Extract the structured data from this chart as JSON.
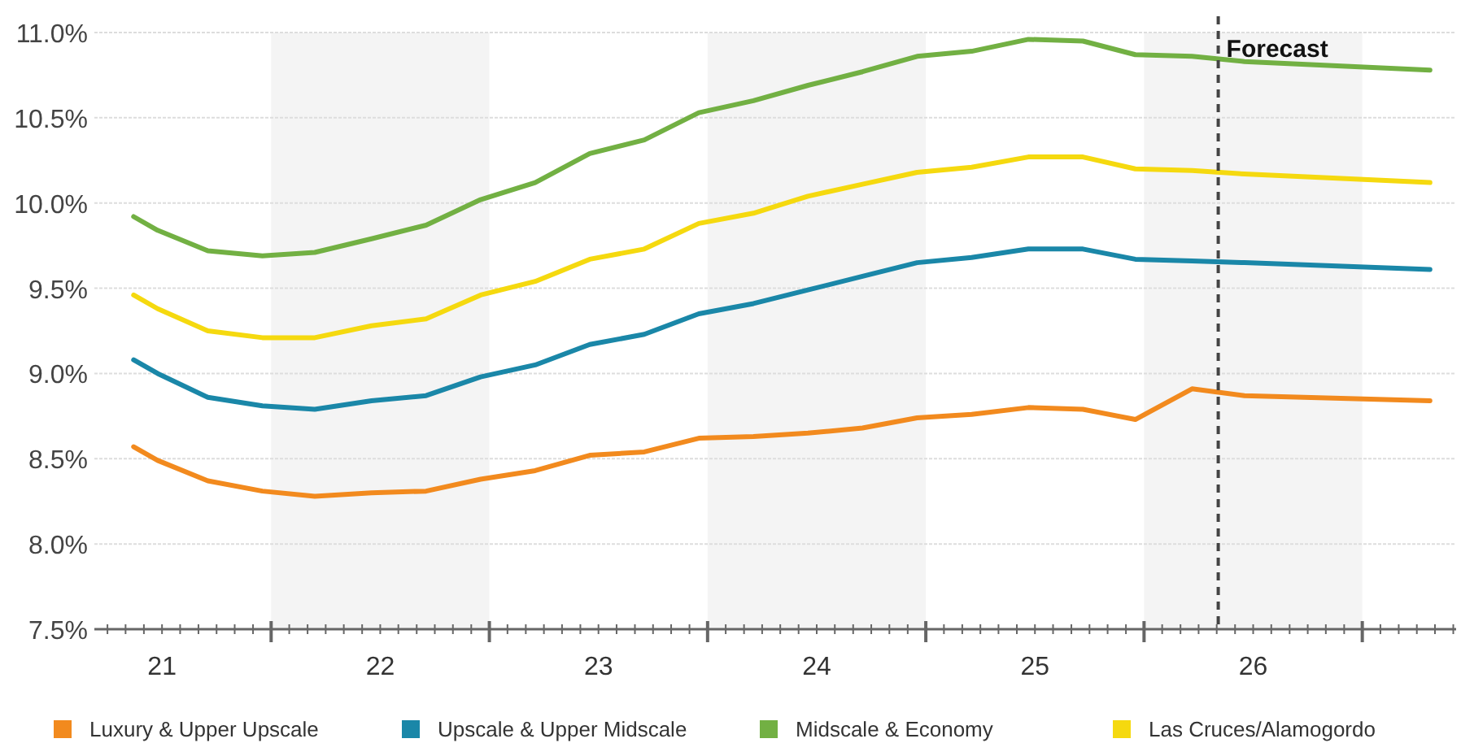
{
  "chart_data": {
    "type": "line",
    "x": [
      20.87,
      20.98,
      21.21,
      21.46,
      21.7,
      21.96,
      22.21,
      22.46,
      22.71,
      22.96,
      23.21,
      23.46,
      23.71,
      23.96,
      24.21,
      24.46,
      24.71,
      24.97,
      25.22,
      25.46,
      25.72,
      25.96,
      26.81
    ],
    "series": [
      {
        "name": "Luxury & Upper Upscale",
        "color": "#f28a1e",
        "values": [
          8.57,
          8.49,
          8.37,
          8.31,
          8.28,
          8.3,
          8.31,
          8.38,
          8.43,
          8.52,
          8.54,
          8.62,
          8.63,
          8.65,
          8.68,
          8.74,
          8.76,
          8.8,
          8.79,
          8.73,
          8.91,
          8.87,
          8.84
        ]
      },
      {
        "name": "Upscale & Upper Midscale",
        "color": "#1a87a8",
        "values": [
          9.08,
          9.0,
          8.86,
          8.81,
          8.79,
          8.84,
          8.87,
          8.98,
          9.05,
          9.17,
          9.23,
          9.35,
          9.41,
          9.49,
          9.57,
          9.65,
          9.68,
          9.73,
          9.73,
          9.67,
          9.66,
          9.65,
          9.61
        ]
      },
      {
        "name": "Midscale & Economy",
        "color": "#72b043",
        "values": [
          9.92,
          9.84,
          9.72,
          9.69,
          9.71,
          9.79,
          9.87,
          10.02,
          10.12,
          10.29,
          10.37,
          10.53,
          10.6,
          10.69,
          10.77,
          10.86,
          10.89,
          10.96,
          10.95,
          10.87,
          10.86,
          10.83,
          10.78
        ]
      },
      {
        "name": "Las Cruces/Alamogordo",
        "color": "#f5d90f",
        "values": [
          9.46,
          9.38,
          9.25,
          9.21,
          9.21,
          9.28,
          9.32,
          9.46,
          9.54,
          9.67,
          9.73,
          9.88,
          9.94,
          10.04,
          10.11,
          10.18,
          10.21,
          10.27,
          10.27,
          10.2,
          10.19,
          10.17,
          10.12
        ]
      }
    ],
    "xlim": [
      20.69,
      26.93
    ],
    "xticks": [
      {
        "value": 20.75,
        "label": null
      },
      {
        "value": 20.833,
        "label": null
      },
      {
        "value": 20.917,
        "label": null
      },
      {
        "value": 21,
        "label": "21"
      },
      {
        "value": 21.083,
        "label": null
      },
      {
        "value": 21.167,
        "label": null
      },
      {
        "value": 21.25,
        "label": null
      },
      {
        "value": 21.333,
        "label": null
      },
      {
        "value": 21.417,
        "label": null
      },
      {
        "value": 21.5,
        "label": null
      },
      {
        "value": 21.583,
        "label": null
      },
      {
        "value": 21.667,
        "label": null
      },
      {
        "value": 21.75,
        "label": null
      },
      {
        "value": 21.833,
        "label": null
      },
      {
        "value": 21.917,
        "label": null
      },
      {
        "value": 22,
        "label": "22"
      },
      {
        "value": 22.083,
        "label": null
      },
      {
        "value": 22.167,
        "label": null
      },
      {
        "value": 22.25,
        "label": null
      },
      {
        "value": 22.333,
        "label": null
      },
      {
        "value": 22.417,
        "label": null
      },
      {
        "value": 22.5,
        "label": null
      },
      {
        "value": 22.583,
        "label": null
      },
      {
        "value": 22.667,
        "label": null
      },
      {
        "value": 22.75,
        "label": null
      },
      {
        "value": 22.833,
        "label": null
      },
      {
        "value": 22.917,
        "label": null
      },
      {
        "value": 23,
        "label": "23"
      },
      {
        "value": 23.083,
        "label": null
      },
      {
        "value": 23.167,
        "label": null
      },
      {
        "value": 23.25,
        "label": null
      },
      {
        "value": 23.333,
        "label": null
      },
      {
        "value": 23.417,
        "label": null
      },
      {
        "value": 23.5,
        "label": null
      },
      {
        "value": 23.583,
        "label": null
      },
      {
        "value": 23.667,
        "label": null
      },
      {
        "value": 23.75,
        "label": null
      },
      {
        "value": 23.833,
        "label": null
      },
      {
        "value": 23.917,
        "label": null
      },
      {
        "value": 24,
        "label": "24"
      },
      {
        "value": 24.083,
        "label": null
      },
      {
        "value": 24.167,
        "label": null
      },
      {
        "value": 24.25,
        "label": null
      },
      {
        "value": 24.333,
        "label": null
      },
      {
        "value": 24.417,
        "label": null
      },
      {
        "value": 24.5,
        "label": null
      },
      {
        "value": 24.583,
        "label": null
      },
      {
        "value": 24.667,
        "label": null
      },
      {
        "value": 24.75,
        "label": null
      },
      {
        "value": 24.833,
        "label": null
      },
      {
        "value": 24.917,
        "label": null
      },
      {
        "value": 25,
        "label": "25"
      },
      {
        "value": 25.083,
        "label": null
      },
      {
        "value": 25.167,
        "label": null
      },
      {
        "value": 25.25,
        "label": null
      },
      {
        "value": 25.333,
        "label": null
      },
      {
        "value": 25.417,
        "label": null
      },
      {
        "value": 25.5,
        "label": null
      },
      {
        "value": 25.583,
        "label": null
      },
      {
        "value": 25.667,
        "label": null
      },
      {
        "value": 25.75,
        "label": null
      },
      {
        "value": 25.833,
        "label": null
      },
      {
        "value": 25.917,
        "label": null
      },
      {
        "value": 26,
        "label": "26"
      },
      {
        "value": 26.083,
        "label": null
      },
      {
        "value": 26.167,
        "label": null
      },
      {
        "value": 26.25,
        "label": null
      },
      {
        "value": 26.333,
        "label": null
      },
      {
        "value": 26.417,
        "label": null
      },
      {
        "value": 26.5,
        "label": null
      },
      {
        "value": 26.583,
        "label": null
      },
      {
        "value": 26.667,
        "label": null
      },
      {
        "value": 26.75,
        "label": null
      },
      {
        "value": 26.833,
        "label": null
      },
      {
        "value": 26.917,
        "label": null
      }
    ],
    "ylim": [
      7.5,
      11.0
    ],
    "yticks": [
      {
        "value": 7.5,
        "label": "7.5%"
      },
      {
        "value": 8.0,
        "label": "8.0%"
      },
      {
        "value": 8.5,
        "label": "8.5%"
      },
      {
        "value": 9.0,
        "label": "9.0%"
      },
      {
        "value": 9.5,
        "label": "9.5%"
      },
      {
        "value": 10.0,
        "label": "10.0%"
      },
      {
        "value": 10.5,
        "label": "10.5%"
      },
      {
        "value": 11.0,
        "label": "11.0%"
      }
    ],
    "grid": "y",
    "legend": "bottom",
    "marker": "none",
    "line_style": "solid",
    "bands": [
      {
        "axis": "x",
        "from": 21.5,
        "to": 22.5,
        "color": "#f4f4f4"
      },
      {
        "axis": "x",
        "from": 23.5,
        "to": 24.5,
        "color": "#f4f4f4"
      },
      {
        "axis": "x",
        "from": 25.5,
        "to": 26.5,
        "color": "#f4f4f4"
      }
    ],
    "ref_lines": [
      {
        "axis": "x",
        "value": 25.84,
        "label": "Forecast",
        "color": "#444444",
        "line_style": "dashed"
      }
    ]
  }
}
